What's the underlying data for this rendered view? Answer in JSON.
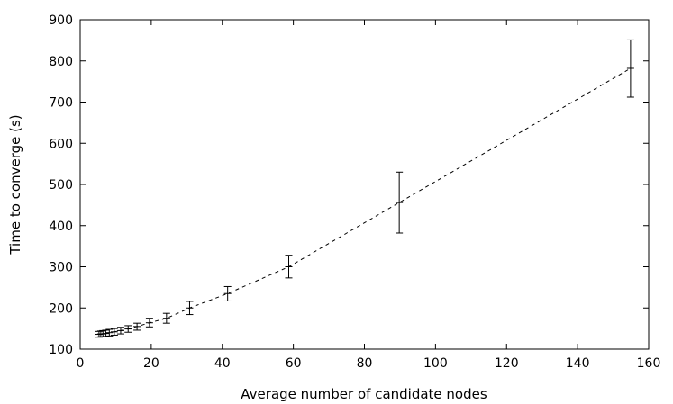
{
  "chart_data": {
    "type": "line",
    "title": "",
    "xlabel": "Average number of candidate nodes",
    "ylabel": "Time to converge (s)",
    "xlim": [
      0,
      160
    ],
    "ylim": [
      100,
      900
    ],
    "x_ticks": [
      0,
      20,
      40,
      60,
      80,
      100,
      120,
      140,
      160
    ],
    "y_ticks": [
      100,
      200,
      300,
      400,
      500,
      600,
      700,
      800,
      900
    ],
    "grid": false,
    "legend": "none",
    "series": [
      {
        "line_style": "dashed",
        "marker": "error-bar",
        "color": "#000000",
        "points": [
          {
            "x": 5.3,
            "y": 136,
            "err_low": 129,
            "err_high": 143
          },
          {
            "x": 5.8,
            "y": 137,
            "err_low": 130,
            "err_high": 144
          },
          {
            "x": 6.4,
            "y": 137,
            "err_low": 130,
            "err_high": 145
          },
          {
            "x": 7.2,
            "y": 138,
            "err_low": 131,
            "err_high": 146
          },
          {
            "x": 8.2,
            "y": 140,
            "err_low": 132,
            "err_high": 148
          },
          {
            "x": 9.6,
            "y": 142,
            "err_low": 134,
            "err_high": 150
          },
          {
            "x": 11.4,
            "y": 145,
            "err_low": 137,
            "err_high": 153
          },
          {
            "x": 13.5,
            "y": 149,
            "err_low": 141,
            "err_high": 157
          },
          {
            "x": 16.0,
            "y": 155,
            "err_low": 146,
            "err_high": 163
          },
          {
            "x": 19.5,
            "y": 164,
            "err_low": 154,
            "err_high": 175
          },
          {
            "x": 24.3,
            "y": 175,
            "err_low": 163,
            "err_high": 187
          },
          {
            "x": 30.8,
            "y": 200,
            "err_low": 184,
            "err_high": 216
          },
          {
            "x": 41.5,
            "y": 235,
            "err_low": 217,
            "err_high": 252
          },
          {
            "x": 58.7,
            "y": 300,
            "err_low": 273,
            "err_high": 328
          },
          {
            "x": 89.8,
            "y": 456,
            "err_low": 382,
            "err_high": 530
          },
          {
            "x": 154.9,
            "y": 782,
            "err_low": 712,
            "err_high": 851
          }
        ]
      }
    ]
  }
}
